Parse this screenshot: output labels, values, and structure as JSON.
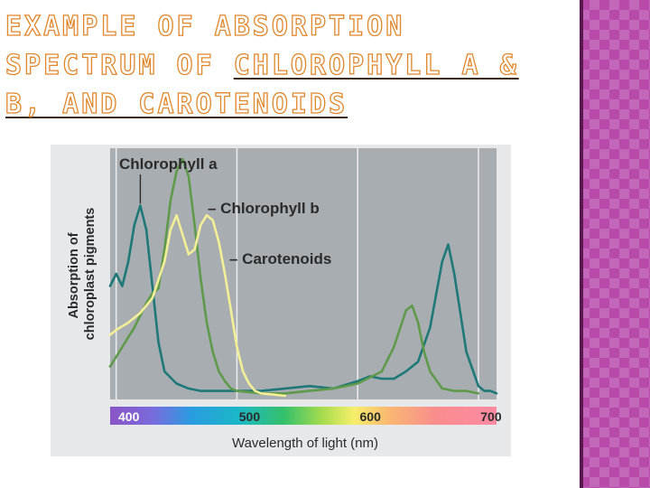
{
  "slide": {
    "title_prefix": "EXAMPLE OF ABSORPTION SPECTRUM OF ",
    "title_linked": "CHLOROPHYLL A & B, AND CAROTENOIDS"
  },
  "colors": {
    "plot_background": "#a8adb2",
    "chlorophyll_a": "#1e7878",
    "chlorophyll_b": "#5e9a4a",
    "carotenoids": "#f3ef96",
    "side_band": "#b84aaa"
  },
  "chart_data": {
    "type": "line",
    "xlabel": "Wavelength of light (nm)",
    "ylabel_lines": [
      "Absorption of",
      "chloroplast pigments"
    ],
    "xlim": [
      395,
      715
    ],
    "ylim": [
      0,
      1
    ],
    "x_ticks": [
      400,
      500,
      600,
      700
    ],
    "gridlines_x": [
      400,
      500,
      600,
      700
    ],
    "grid": true,
    "spectrum_bar": true,
    "series": [
      {
        "name": "Chlorophyll a",
        "color": "#1e7878",
        "x": [
          395,
          400,
          405,
          410,
          415,
          420,
          425,
          430,
          435,
          440,
          450,
          460,
          470,
          480,
          490,
          500,
          520,
          540,
          560,
          580,
          600,
          610,
          620,
          630,
          640,
          650,
          660,
          670,
          675,
          680,
          690,
          700,
          705,
          710,
          715
        ],
        "y": [
          0.45,
          0.5,
          0.45,
          0.55,
          0.7,
          0.78,
          0.68,
          0.45,
          0.22,
          0.1,
          0.05,
          0.03,
          0.02,
          0.02,
          0.02,
          0.02,
          0.02,
          0.03,
          0.04,
          0.03,
          0.06,
          0.08,
          0.07,
          0.07,
          0.1,
          0.14,
          0.28,
          0.55,
          0.62,
          0.5,
          0.18,
          0.04,
          0.02,
          0.02,
          0.01
        ]
      },
      {
        "name": "Chlorophyll b",
        "color": "#5e9a4a",
        "x": [
          395,
          405,
          415,
          425,
          430,
          435,
          440,
          445,
          450,
          455,
          460,
          465,
          470,
          475,
          480,
          485,
          490,
          495,
          500,
          520,
          540,
          560,
          580,
          600,
          620,
          630,
          640,
          645,
          650,
          655,
          660,
          670,
          680,
          690,
          700
        ],
        "y": [
          0.12,
          0.2,
          0.28,
          0.38,
          0.42,
          0.44,
          0.6,
          0.8,
          0.92,
          0.97,
          0.9,
          0.7,
          0.48,
          0.3,
          0.18,
          0.1,
          0.06,
          0.03,
          0.02,
          0.01,
          0.01,
          0.02,
          0.03,
          0.05,
          0.1,
          0.2,
          0.35,
          0.37,
          0.3,
          0.18,
          0.1,
          0.03,
          0.02,
          0.02,
          0.01
        ]
      },
      {
        "name": "Carotenoids",
        "color": "#f3ef96",
        "x": [
          395,
          400,
          410,
          420,
          430,
          440,
          445,
          450,
          455,
          460,
          465,
          470,
          475,
          480,
          485,
          490,
          495,
          500,
          505,
          510,
          515,
          520,
          530,
          540
        ],
        "y": [
          0.25,
          0.27,
          0.3,
          0.34,
          0.4,
          0.55,
          0.68,
          0.74,
          0.66,
          0.58,
          0.6,
          0.7,
          0.74,
          0.72,
          0.63,
          0.5,
          0.35,
          0.2,
          0.1,
          0.05,
          0.02,
          0.01,
          0.005,
          0.0
        ]
      }
    ],
    "annotations": [
      {
        "text": "Chlorophyll a",
        "series": "Chlorophyll a",
        "pointer_x": 420
      },
      {
        "text": "– Chlorophyll b",
        "series": "Chlorophyll b"
      },
      {
        "text": "– Carotenoids",
        "series": "Carotenoids"
      }
    ]
  }
}
